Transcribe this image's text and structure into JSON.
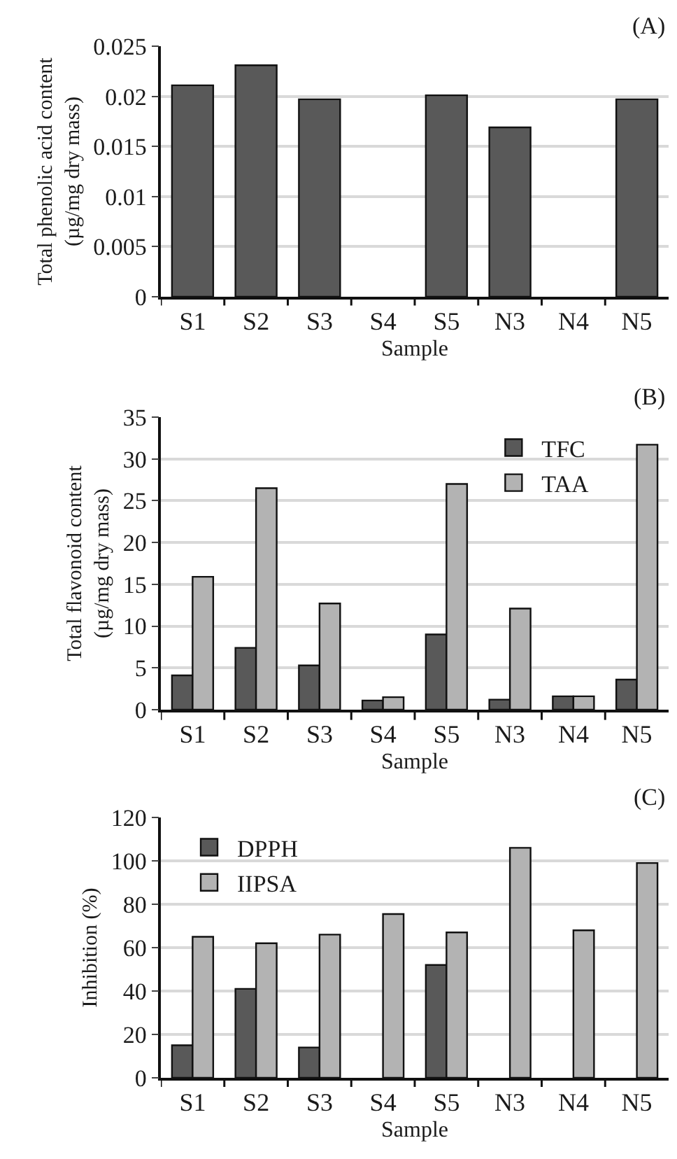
{
  "chart_data": [
    {
      "type": "bar",
      "annotations": [
        "(A)"
      ],
      "ylabel": "Total phenolic acid content\n(µg/mg dry mass)",
      "xlabel": "Sample",
      "categories": [
        "S1",
        "S2",
        "S3",
        "S4",
        "S5",
        "N3",
        "N4",
        "N5"
      ],
      "values": [
        0.0211,
        0.0231,
        0.0197,
        null,
        0.0201,
        0.0169,
        null,
        0.0197
      ],
      "color": "#595959",
      "ylim": [
        0,
        0.025
      ],
      "yticks": [
        0,
        0.005,
        0.01,
        0.015,
        0.02,
        0.025
      ],
      "grid": "y",
      "legend": false
    },
    {
      "type": "bar",
      "annotations": [
        "(B)"
      ],
      "ylabel": "Total flavonoid content\n(µg/mg dry mass)",
      "xlabel": "Sample",
      "categories": [
        "S1",
        "S2",
        "S3",
        "S4",
        "S5",
        "N3",
        "N4",
        "N5"
      ],
      "series": [
        {
          "name": "TFC",
          "color": "#595959",
          "values": [
            4.1,
            7.4,
            5.3,
            1.1,
            9.0,
            1.2,
            1.6,
            3.6
          ]
        },
        {
          "name": "TAA",
          "color": "#b3b3b3",
          "values": [
            15.9,
            26.5,
            12.7,
            1.5,
            27.0,
            12.1,
            1.6,
            31.7
          ]
        }
      ],
      "ylim": [
        0,
        35
      ],
      "yticks": [
        0,
        5,
        10,
        15,
        20,
        25,
        30,
        35
      ],
      "grid": "y",
      "legend": "top right"
    },
    {
      "type": "bar",
      "annotations": [
        "(C)"
      ],
      "ylabel": "Inhibition (%)",
      "xlabel": "Sample",
      "categories": [
        "S1",
        "S2",
        "S3",
        "S4",
        "S5",
        "N3",
        "N4",
        "N5"
      ],
      "series": [
        {
          "name": "DPPH",
          "color": "#595959",
          "values": [
            15,
            41,
            14,
            null,
            52,
            null,
            null,
            null
          ]
        },
        {
          "name": "IIPSA",
          "color": "#b3b3b3",
          "values": [
            65,
            62,
            66,
            75.5,
            67,
            106,
            68,
            99
          ]
        }
      ],
      "ylim": [
        0,
        120
      ],
      "yticks": [
        0,
        20,
        40,
        60,
        80,
        100,
        120
      ],
      "grid": "y",
      "legend": "top left"
    }
  ]
}
